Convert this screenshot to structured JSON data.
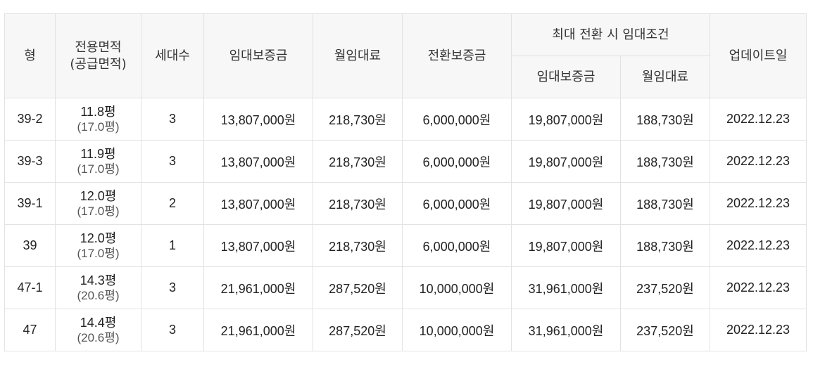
{
  "header": {
    "type": "형",
    "area_line1": "전용면적",
    "area_line2": "(공급면적)",
    "households": "세대수",
    "deposit": "임대보증금",
    "monthly_rent": "월임대료",
    "conversion_deposit": "전환보증금",
    "max_conversion": "최대 전환 시 임대조건",
    "max_deposit": "임대보증금",
    "max_monthly_rent": "월임대료",
    "updated": "업데이트일"
  },
  "rows": [
    {
      "type": "39-2",
      "area": "11.8평",
      "supply_area": "(17.0평)",
      "households": "3",
      "deposit": "13,807,000원",
      "monthly_rent": "218,730원",
      "conversion_deposit": "6,000,000원",
      "max_deposit": "19,807,000원",
      "max_monthly_rent": "188,730원",
      "updated": "2022.12.23"
    },
    {
      "type": "39-3",
      "area": "11.9평",
      "supply_area": "(17.0평)",
      "households": "3",
      "deposit": "13,807,000원",
      "monthly_rent": "218,730원",
      "conversion_deposit": "6,000,000원",
      "max_deposit": "19,807,000원",
      "max_monthly_rent": "188,730원",
      "updated": "2022.12.23"
    },
    {
      "type": "39-1",
      "area": "12.0평",
      "supply_area": "(17.0평)",
      "households": "2",
      "deposit": "13,807,000원",
      "monthly_rent": "218,730원",
      "conversion_deposit": "6,000,000원",
      "max_deposit": "19,807,000원",
      "max_monthly_rent": "188,730원",
      "updated": "2022.12.23"
    },
    {
      "type": "39",
      "area": "12.0평",
      "supply_area": "(17.0평)",
      "households": "1",
      "deposit": "13,807,000원",
      "monthly_rent": "218,730원",
      "conversion_deposit": "6,000,000원",
      "max_deposit": "19,807,000원",
      "max_monthly_rent": "188,730원",
      "updated": "2022.12.23"
    },
    {
      "type": "47-1",
      "area": "14.3평",
      "supply_area": "(20.6평)",
      "households": "3",
      "deposit": "21,961,000원",
      "monthly_rent": "287,520원",
      "conversion_deposit": "10,000,000원",
      "max_deposit": "31,961,000원",
      "max_monthly_rent": "237,520원",
      "updated": "2022.12.23"
    },
    {
      "type": "47",
      "area": "14.4평",
      "supply_area": "(20.6평)",
      "households": "3",
      "deposit": "21,961,000원",
      "monthly_rent": "287,520원",
      "conversion_deposit": "10,000,000원",
      "max_deposit": "31,961,000원",
      "max_monthly_rent": "237,520원",
      "updated": "2022.12.23"
    }
  ]
}
